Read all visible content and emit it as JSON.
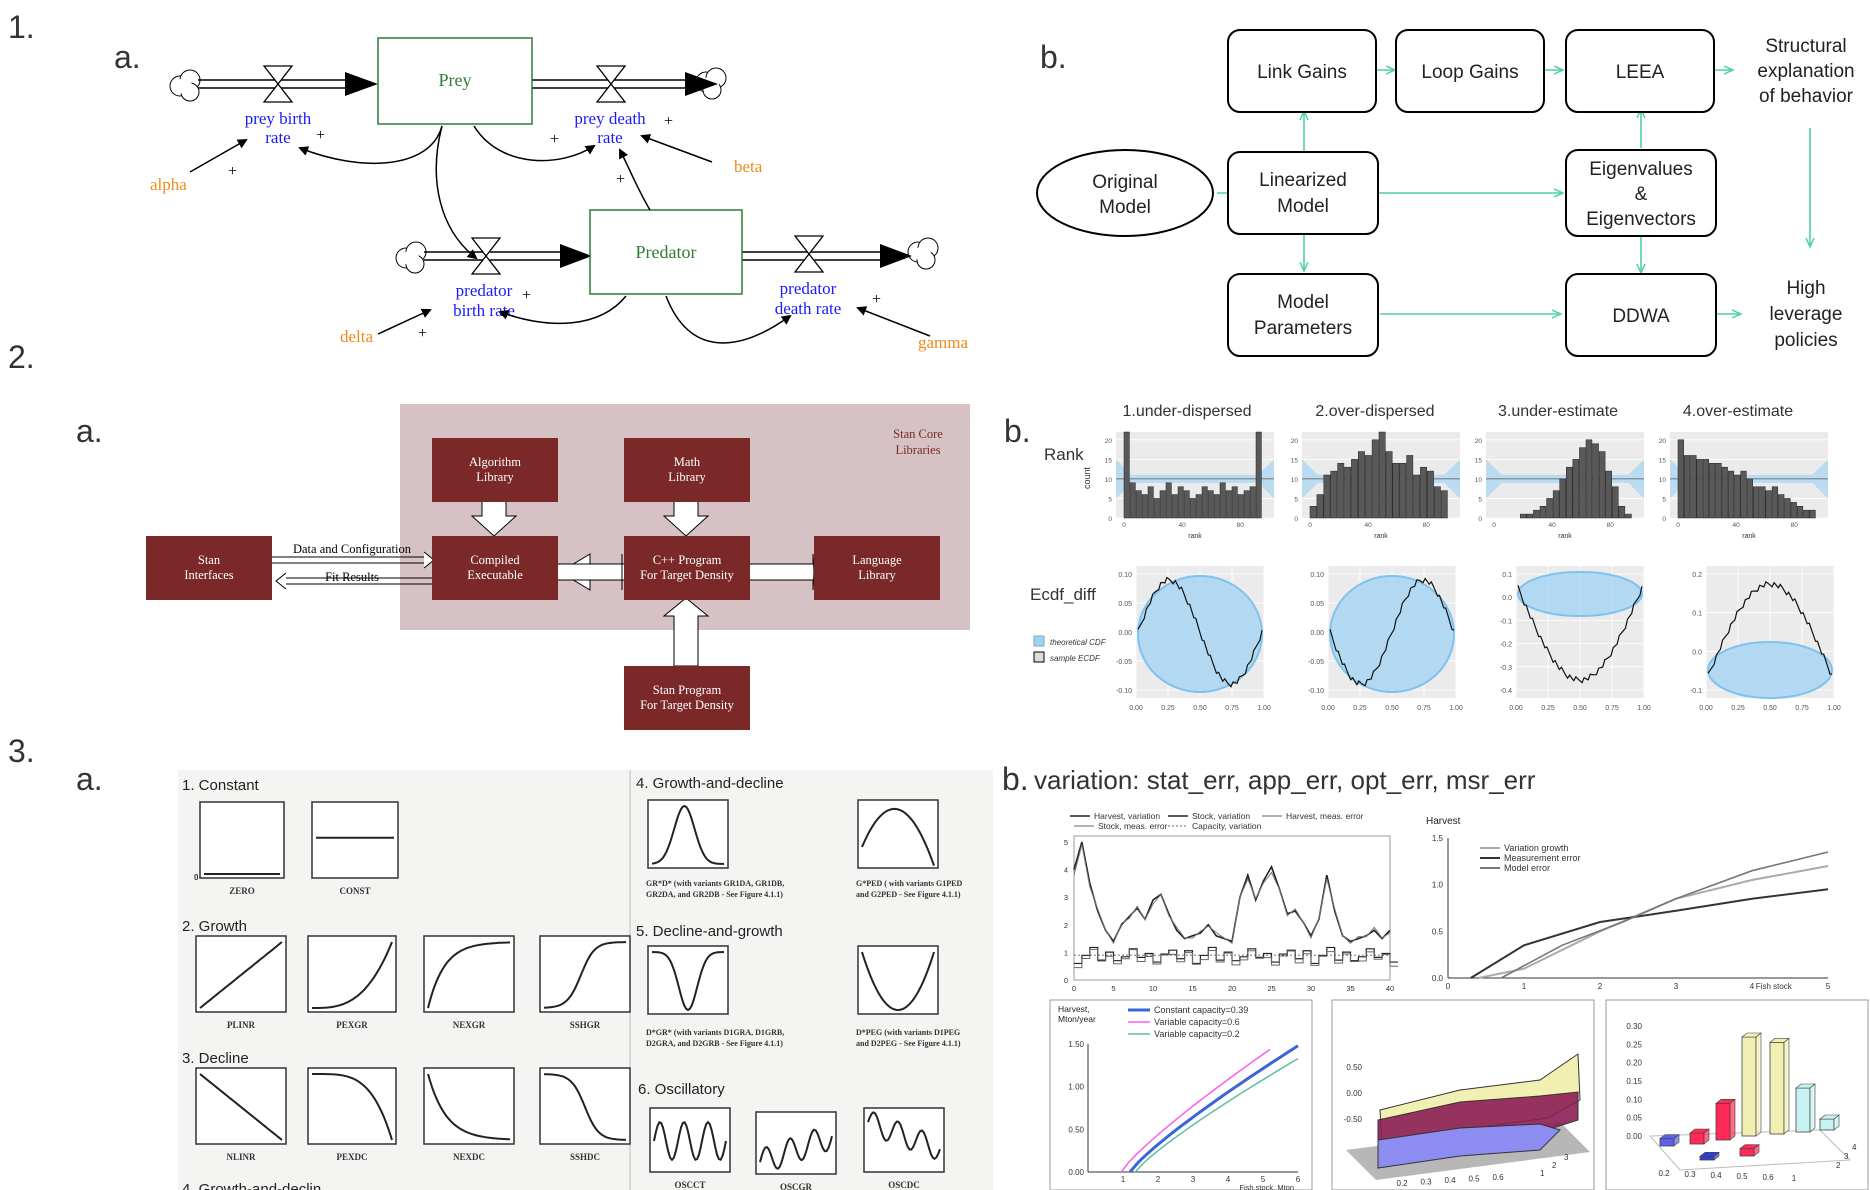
{
  "panel_numbers": {
    "p1": "1.",
    "p2": "2.",
    "p3": "3."
  },
  "sub_labels": {
    "p1a": "a.",
    "p1b": "b.",
    "p2a": "a.",
    "p2b": "b.",
    "p3a": "a.",
    "p3b": "b."
  },
  "p1a": {
    "stock_prey": "Prey",
    "stock_predator": "Predator",
    "prey_birth_rate": [
      "prey birth",
      "rate"
    ],
    "prey_death_rate": [
      "prey death",
      "rate"
    ],
    "predator_birth_rate": [
      "predator",
      "birth rate"
    ],
    "predator_death_rate": [
      "predator",
      "death rate"
    ],
    "alpha": "alpha",
    "beta": "beta",
    "delta": "delta",
    "gamma": "gamma",
    "plus": "+",
    "colors": {
      "stock": "#2e7d32",
      "rate": "#1a1aff",
      "param": "#f08a1c"
    }
  },
  "p1b": {
    "original_model": [
      "Original",
      "Model"
    ],
    "link_gains": "Link Gains",
    "loop_gains": "Loop Gains",
    "leea": "LEEA",
    "linearized_model": [
      "Linearized",
      "Model"
    ],
    "eigen": [
      "Eigenvalues",
      "&",
      "Eigenvectors"
    ],
    "model_parameters": [
      "Model",
      "Parameters"
    ],
    "ddwa": "DDWA",
    "structural": [
      "Structural",
      "explanation",
      "of behavior"
    ],
    "high_leverage": [
      "High",
      "leverage",
      "policies"
    ],
    "arrow_color": "#4fd1a5"
  },
  "p2a": {
    "core_title": [
      "Stan Core",
      "Libraries"
    ],
    "algorithm_library": [
      "Algorithm",
      "Library"
    ],
    "math_library": [
      "Math",
      "Library"
    ],
    "stan_interfaces": [
      "Stan",
      "Interfaces"
    ],
    "compiled_executable": [
      "Compiled",
      "Executable"
    ],
    "cpp_program": [
      "C++ Program",
      "For Target Density"
    ],
    "language_library": [
      "Language",
      "Library"
    ],
    "stan_program": [
      "Stan Program",
      "For Target Density"
    ],
    "data_config": "Data and Configuration",
    "fit_results": "Fit Results",
    "colors": {
      "box": "#7a2828",
      "core_bg": "#d6c2c4",
      "core_text": "#7a2828"
    }
  },
  "p2b": {
    "titles": [
      "1.under-dispersed",
      "2.over-dispersed",
      "3.under-estimate",
      "4.over-estimate"
    ],
    "row_rank": "Rank",
    "row_ecdf": "Ecdf_diff",
    "count_label": "count",
    "rank_label": "rank",
    "legend_theoretical": "theoretical CDF",
    "legend_sample": "sample ECDF",
    "hist_yticks": [
      "0",
      "5",
      "10",
      "15",
      "20"
    ],
    "hist_xticks": [
      "0",
      "40",
      "80"
    ],
    "ecdf_xticks": [
      "0.00",
      "0.25",
      "0.50",
      "0.75",
      "1.00"
    ],
    "ecdf_yticks_a": [
      "0.10",
      "0.05",
      "0.00",
      "-0.05",
      "-0.10"
    ],
    "ecdf_yticks_c": [
      "0.1",
      "0.0",
      "-0.1",
      "-0.2",
      "-0.3",
      "-0.4"
    ],
    "ecdf_yticks_d": [
      "0.2",
      "0.1",
      "0.0",
      "-0.1"
    ],
    "hist_counts": [
      [
        22,
        9,
        7,
        6,
        8,
        5,
        7,
        9,
        6,
        8,
        7,
        5,
        6,
        8,
        7,
        6,
        9,
        7,
        8,
        6,
        7,
        8,
        22
      ],
      [
        3,
        6,
        11,
        12,
        14,
        13,
        15,
        17,
        16,
        20,
        22,
        17,
        14,
        14,
        16,
        11,
        13,
        12,
        8,
        7
      ],
      [
        0,
        0,
        0,
        0,
        1,
        1,
        2,
        3,
        5,
        7,
        10,
        13,
        15,
        18,
        20,
        19,
        17,
        12,
        8,
        3,
        1
      ],
      [
        20,
        16,
        16,
        15,
        15,
        14,
        14,
        13,
        12,
        11,
        12,
        10,
        8,
        8,
        7,
        8,
        6,
        5,
        4,
        3,
        2,
        2
      ]
    ],
    "colors": {
      "band": "#9fd3f3",
      "bar": "#595959",
      "grid": "#ebebeb"
    }
  },
  "p3a": {
    "sections": {
      "constant": "1. Constant",
      "growth": "2. Growth",
      "decline": "3. Decline",
      "gd": "4. Growth-and-decline",
      "dg": "5. Decline-and-growth",
      "osc": "6. Oscillatory",
      "footer": "4. Growth-and-declin"
    },
    "labels": {
      "zero": "ZERO",
      "const": "CONST",
      "plinr": "PLINR",
      "pexgr": "PEXGR",
      "nexgr": "NEXGR",
      "sshgr": "SSHGR",
      "nlinr": "NLINR",
      "pexdc": "PEXDC",
      "nexdc": "NEXDC",
      "sshdc": "SSHDC",
      "gd1": [
        "GR*D* (with variants GR1DA, GR1DB,",
        "GR2DA, and GR2DB - See Figure 4.1.1)"
      ],
      "gd2": [
        "G*PED  ( with variants G1PED",
        "and G2PED - See Figure 4.1.1)"
      ],
      "dg1": [
        "D*GR* (with variants D1GRA, D1GRB,",
        "D2GRA, and D2GRB - See Figure 4.1.1)"
      ],
      "dg2": [
        "D*PEG (with variants D1PEG",
        "and D2PEG - See Figure 4.1.1)"
      ],
      "oscct": "OSCCT",
      "oscgr": "OSCGR",
      "oscdc": "OSCDC",
      "zero_tick": "0"
    }
  },
  "p3b": {
    "header": "variation: stat_err, app_err, opt_err, msr_err",
    "tl_legend": [
      "Harvest, variation",
      "Stock, variation",
      "Harvest, meas. error",
      "Stock, meas. error",
      "Capacity, variation"
    ],
    "tl_yticks": [
      "5",
      "4",
      "3",
      "2",
      "1",
      "0"
    ],
    "tl_xticks": [
      "0",
      "5",
      "10",
      "15",
      "20",
      "25",
      "30",
      "35",
      "40"
    ],
    "tr_title": "Harvest",
    "tr_legend": [
      "Variation growth",
      "Measurement error",
      "Model error"
    ],
    "tr_yticks": [
      "1.5",
      "1.0",
      "0.5",
      "0.0"
    ],
    "tr_xticks": [
      "0",
      "1",
      "2",
      "3",
      "4"
    ],
    "tr_xlabel": "Fish stock",
    "tr_xlast": "5",
    "bl_title": [
      "Harvest,",
      "Mton/year"
    ],
    "bl_legend": [
      "Constant capacity=0.39",
      "Variable capacity=0.6",
      "Variable capacity=0.2"
    ],
    "bl_yticks": [
      "1.50",
      "1.00",
      "0.50",
      "0.00"
    ],
    "bl_xticks": [
      "1",
      "2",
      "3",
      "4",
      "5",
      "6"
    ],
    "bl_xlabel": "Fish stock, Mton",
    "bm_yticks": [
      "0.50",
      "0.00",
      "-0.50"
    ],
    "bm_xticks": [
      "0.2",
      "0.3",
      "0.4",
      "0.5",
      "0.6"
    ],
    "bm_zticks": [
      "1",
      "2",
      "3"
    ],
    "br_yticks": [
      "0.30",
      "0.25",
      "0.20",
      "0.15",
      "0.10",
      "0.05",
      "0.00"
    ],
    "br_xticks": [
      "0.2",
      "0.3",
      "0.4",
      "0.5",
      "0.6",
      "1"
    ],
    "br_zticks": [
      "2",
      "3",
      "4"
    ]
  }
}
